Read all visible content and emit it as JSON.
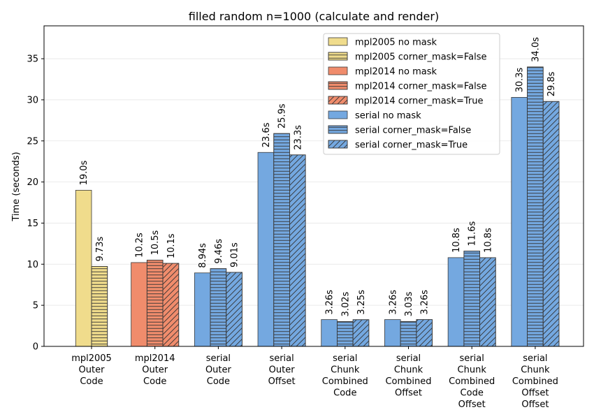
{
  "chart_data": {
    "type": "bar",
    "title": "filled random n=1000 (calculate and render)",
    "xlabel": "",
    "ylabel": "Time (seconds)",
    "ylim": [
      0,
      39
    ],
    "yticks": [
      0,
      5,
      10,
      15,
      20,
      25,
      30,
      35
    ],
    "grid": "horizontal",
    "legend_position": "top-right",
    "categories": [
      [
        "mpl2005",
        "Outer",
        "Code"
      ],
      [
        "mpl2014",
        "Outer",
        "Code"
      ],
      [
        "serial",
        "Outer",
        "Code"
      ],
      [
        "serial",
        "Outer",
        "Offset"
      ],
      [
        "serial",
        "Chunk",
        "Combined",
        "Code"
      ],
      [
        "serial",
        "Chunk",
        "Combined",
        "Offset"
      ],
      [
        "serial",
        "Chunk",
        "Combined",
        "Code",
        "Offset"
      ],
      [
        "serial",
        "Chunk",
        "Combined",
        "Offset",
        "Offset"
      ]
    ],
    "legend": [
      {
        "name": "mpl2005 no mask",
        "color": "#f0dc8c",
        "hatch": "none"
      },
      {
        "name": "mpl2005 corner_mask=False",
        "color": "#f0dc8c",
        "hatch": "horizontal"
      },
      {
        "name": "mpl2014 no mask",
        "color": "#f08c6c",
        "hatch": "none"
      },
      {
        "name": "mpl2014 corner_mask=False",
        "color": "#f08c6c",
        "hatch": "horizontal"
      },
      {
        "name": "mpl2014 corner_mask=True",
        "color": "#f08c6c",
        "hatch": "diagonal"
      },
      {
        "name": "serial no mask",
        "color": "#74a8e0",
        "hatch": "none"
      },
      {
        "name": "serial corner_mask=False",
        "color": "#74a8e0",
        "hatch": "horizontal"
      },
      {
        "name": "serial corner_mask=True",
        "color": "#74a8e0",
        "hatch": "diagonal"
      }
    ],
    "groups": [
      {
        "bars": [
          {
            "value": 19.0,
            "label": "19.0s",
            "color": "#f0dc8c",
            "hatch": "none"
          },
          {
            "value": 9.73,
            "label": "9.73s",
            "color": "#f0dc8c",
            "hatch": "horizontal"
          }
        ]
      },
      {
        "bars": [
          {
            "value": 10.2,
            "label": "10.2s",
            "color": "#f08c6c",
            "hatch": "none"
          },
          {
            "value": 10.5,
            "label": "10.5s",
            "color": "#f08c6c",
            "hatch": "horizontal"
          },
          {
            "value": 10.1,
            "label": "10.1s",
            "color": "#f08c6c",
            "hatch": "diagonal"
          }
        ]
      },
      {
        "bars": [
          {
            "value": 8.94,
            "label": "8.94s",
            "color": "#74a8e0",
            "hatch": "none"
          },
          {
            "value": 9.46,
            "label": "9.46s",
            "color": "#74a8e0",
            "hatch": "horizontal"
          },
          {
            "value": 9.01,
            "label": "9.01s",
            "color": "#74a8e0",
            "hatch": "diagonal"
          }
        ]
      },
      {
        "bars": [
          {
            "value": 23.6,
            "label": "23.6s",
            "color": "#74a8e0",
            "hatch": "none"
          },
          {
            "value": 25.9,
            "label": "25.9s",
            "color": "#74a8e0",
            "hatch": "horizontal"
          },
          {
            "value": 23.3,
            "label": "23.3s",
            "color": "#74a8e0",
            "hatch": "diagonal"
          }
        ]
      },
      {
        "bars": [
          {
            "value": 3.26,
            "label": "3.26s",
            "color": "#74a8e0",
            "hatch": "none"
          },
          {
            "value": 3.02,
            "label": "3.02s",
            "color": "#74a8e0",
            "hatch": "horizontal"
          },
          {
            "value": 3.25,
            "label": "3.25s",
            "color": "#74a8e0",
            "hatch": "diagonal"
          }
        ]
      },
      {
        "bars": [
          {
            "value": 3.26,
            "label": "3.26s",
            "color": "#74a8e0",
            "hatch": "none"
          },
          {
            "value": 3.03,
            "label": "3.03s",
            "color": "#74a8e0",
            "hatch": "horizontal"
          },
          {
            "value": 3.26,
            "label": "3.26s",
            "color": "#74a8e0",
            "hatch": "diagonal"
          }
        ]
      },
      {
        "bars": [
          {
            "value": 10.8,
            "label": "10.8s",
            "color": "#74a8e0",
            "hatch": "none"
          },
          {
            "value": 11.6,
            "label": "11.6s",
            "color": "#74a8e0",
            "hatch": "horizontal"
          },
          {
            "value": 10.8,
            "label": "10.8s",
            "color": "#74a8e0",
            "hatch": "diagonal"
          }
        ]
      },
      {
        "bars": [
          {
            "value": 30.3,
            "label": "30.3s",
            "color": "#74a8e0",
            "hatch": "none"
          },
          {
            "value": 34.0,
            "label": "34.0s",
            "color": "#74a8e0",
            "hatch": "horizontal"
          },
          {
            "value": 29.8,
            "label": "29.8s",
            "color": "#74a8e0",
            "hatch": "diagonal"
          }
        ]
      }
    ]
  }
}
